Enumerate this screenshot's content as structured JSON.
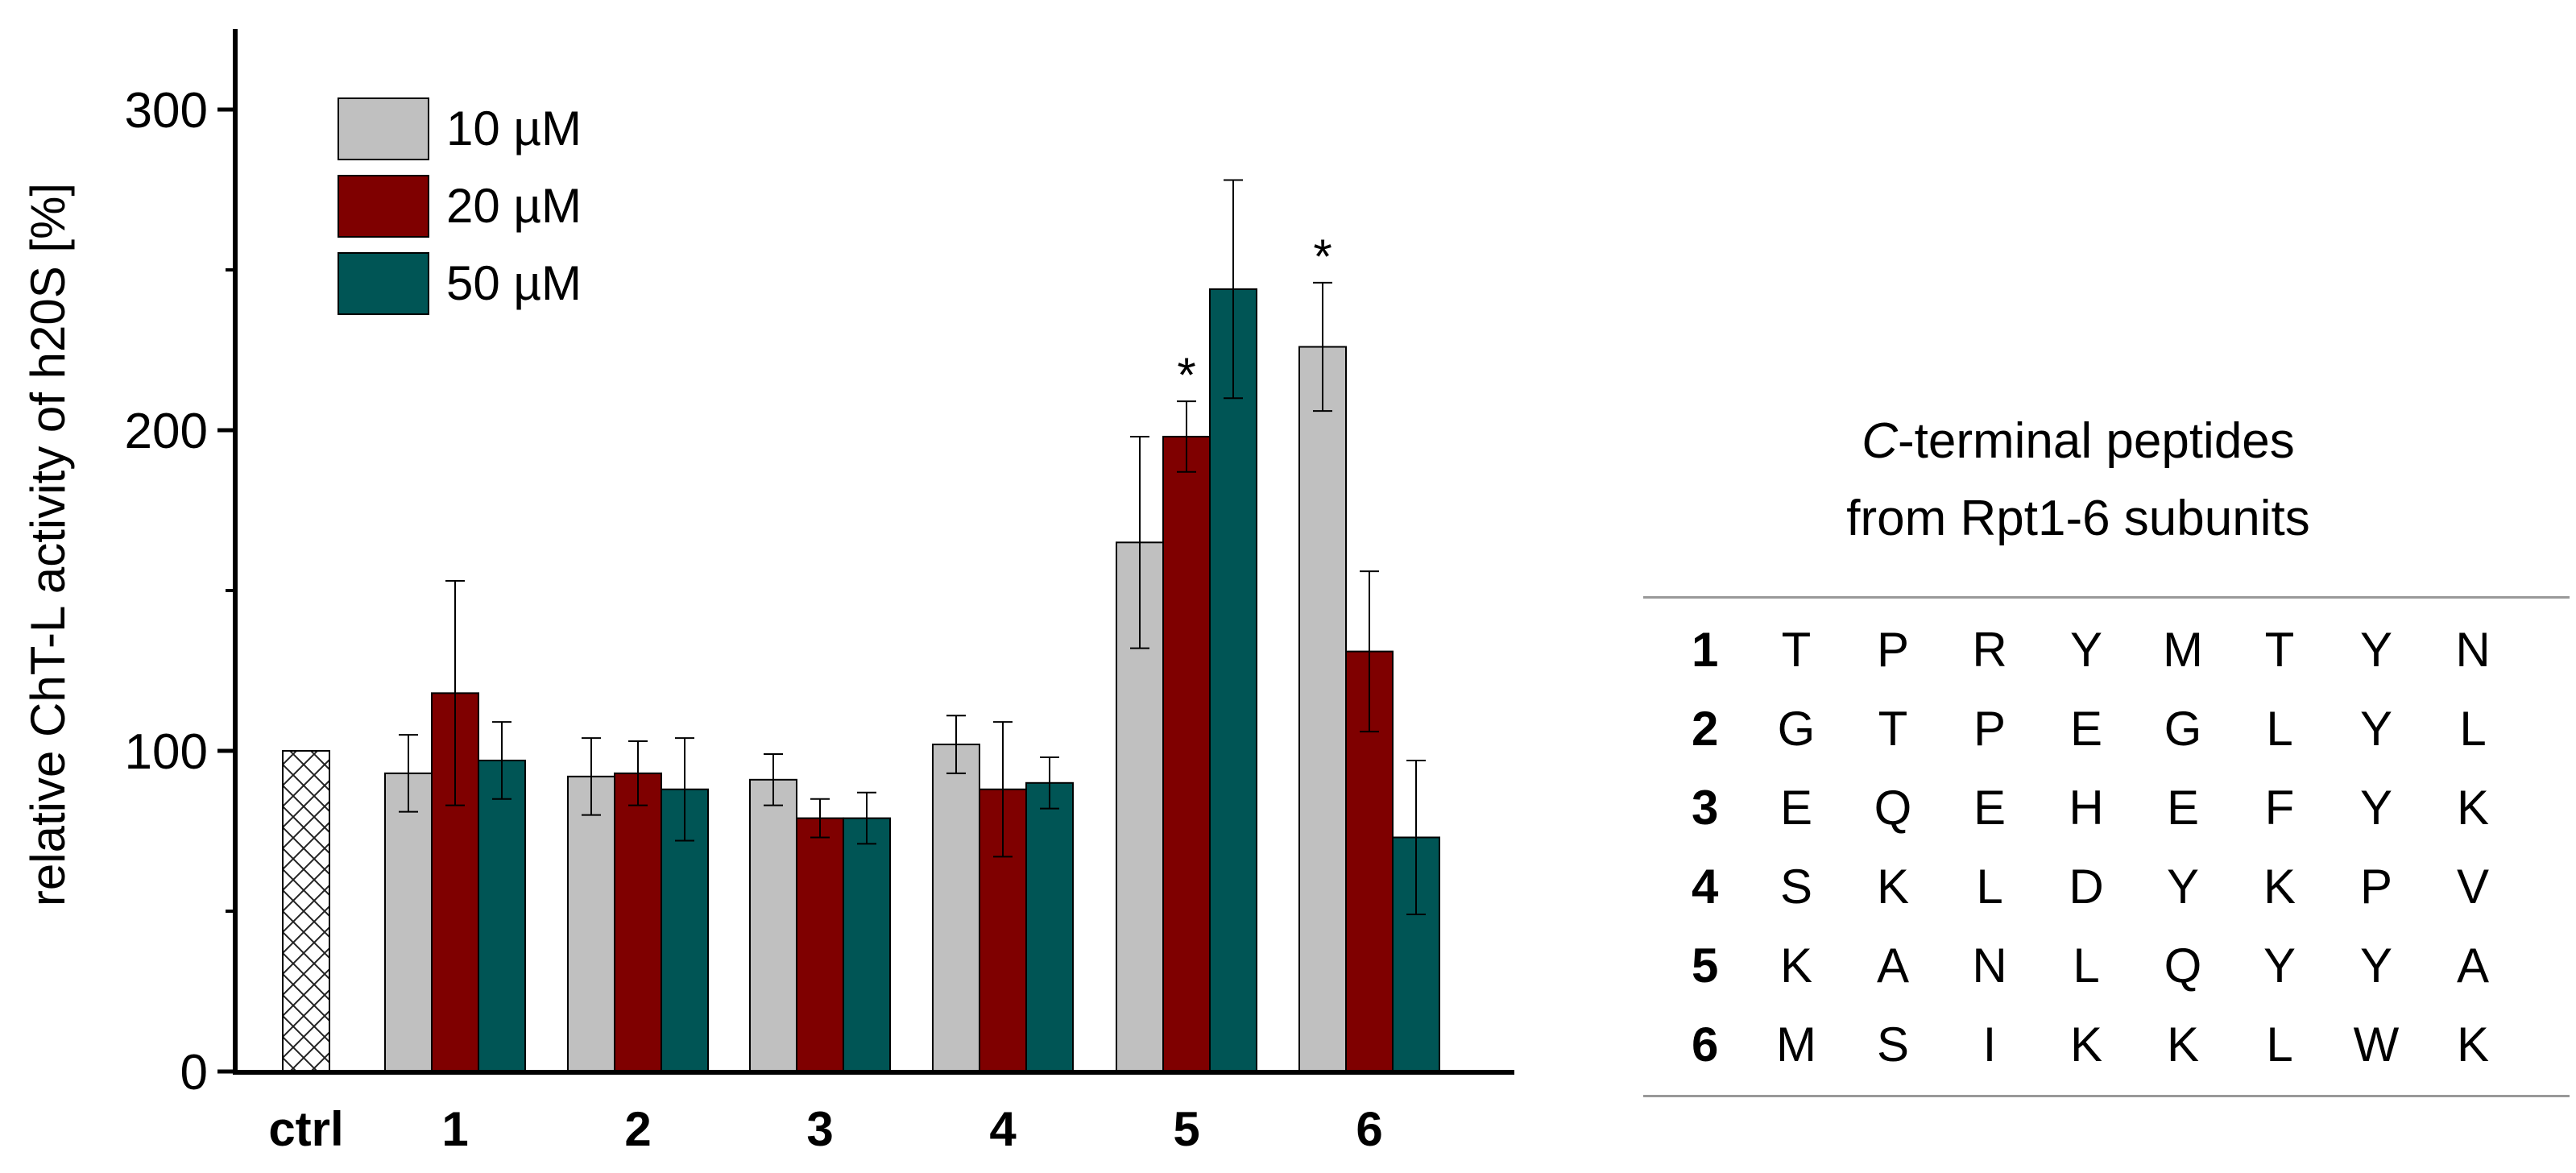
{
  "chart_data": {
    "type": "bar",
    "ylabel": "relative ChT-L activity of h20S [%]",
    "ylim": [
      0,
      320
    ],
    "yticks": [
      0,
      100,
      200,
      300
    ],
    "categories": [
      "ctrl",
      "1",
      "2",
      "3",
      "4",
      "5",
      "6"
    ],
    "control": {
      "category": "ctrl",
      "value": 100
    },
    "series": [
      {
        "name": "10 µM",
        "color": "#c0c0c0",
        "values": [
          null,
          93,
          92,
          91,
          102,
          165,
          226
        ],
        "errors": [
          null,
          12,
          12,
          8,
          9,
          33,
          20
        ]
      },
      {
        "name": "20 µM",
        "color": "#7f0000",
        "values": [
          null,
          118,
          93,
          79,
          88,
          198,
          131
        ],
        "errors": [
          null,
          35,
          10,
          6,
          21,
          11,
          25
        ]
      },
      {
        "name": "50 µM",
        "color": "#005555",
        "values": [
          null,
          97,
          88,
          79,
          90,
          244,
          73
        ],
        "errors": [
          null,
          12,
          16,
          8,
          8,
          34,
          24
        ]
      }
    ],
    "annotations": [
      {
        "category": "5",
        "series": "20 µM",
        "text": "*"
      },
      {
        "category": "6",
        "series": "10 µM",
        "text": "*"
      }
    ],
    "legend_position": "top-left"
  },
  "peptides": {
    "title_italic": "C",
    "title_rest": "-terminal peptides",
    "subtitle": "from Rpt1-6 subunits",
    "rows": [
      {
        "id": "1",
        "residues": [
          "T",
          "P",
          "R",
          "Y",
          "M",
          "T",
          "Y",
          "N"
        ]
      },
      {
        "id": "2",
        "residues": [
          "G",
          "T",
          "P",
          "E",
          "G",
          "L",
          "Y",
          "L"
        ]
      },
      {
        "id": "3",
        "residues": [
          "E",
          "Q",
          "E",
          "H",
          "E",
          "F",
          "Y",
          "K"
        ]
      },
      {
        "id": "4",
        "residues": [
          "S",
          "K",
          "L",
          "D",
          "Y",
          "K",
          "P",
          "V"
        ]
      },
      {
        "id": "5",
        "residues": [
          "K",
          "A",
          "N",
          "L",
          "Q",
          "Y",
          "Y",
          "A"
        ]
      },
      {
        "id": "6",
        "residues": [
          "M",
          "S",
          "I",
          "K",
          "K",
          "L",
          "W",
          "K"
        ]
      }
    ]
  }
}
